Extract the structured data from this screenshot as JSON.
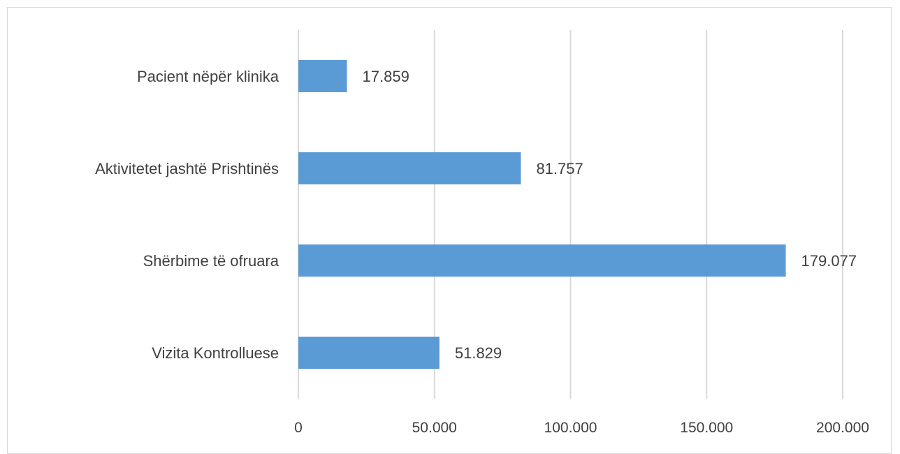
{
  "chart_data": {
    "type": "bar",
    "orientation": "horizontal",
    "title": "",
    "xlabel": "",
    "ylabel": "",
    "categories": [
      "Pacient nëpër klinika",
      "Aktivitetet jashtë Prishtinës",
      "Shërbime të ofruara",
      "Vizita Kontrolluese"
    ],
    "values": [
      17859,
      81757,
      179077,
      51829
    ],
    "value_labels": [
      "17.859",
      "81.757",
      "179.077",
      "51.829"
    ],
    "xlim": [
      0,
      200000
    ],
    "x_ticks": [
      0,
      50000,
      100000,
      150000,
      200000
    ],
    "x_tick_labels": [
      "0",
      "50.000",
      "100.000",
      "150.000",
      "200.000"
    ],
    "grid": "vertical",
    "legend": "none",
    "bar_color": "#5b9bd5",
    "grid_color": "#d9d9d9",
    "text_color": "#404040"
  }
}
